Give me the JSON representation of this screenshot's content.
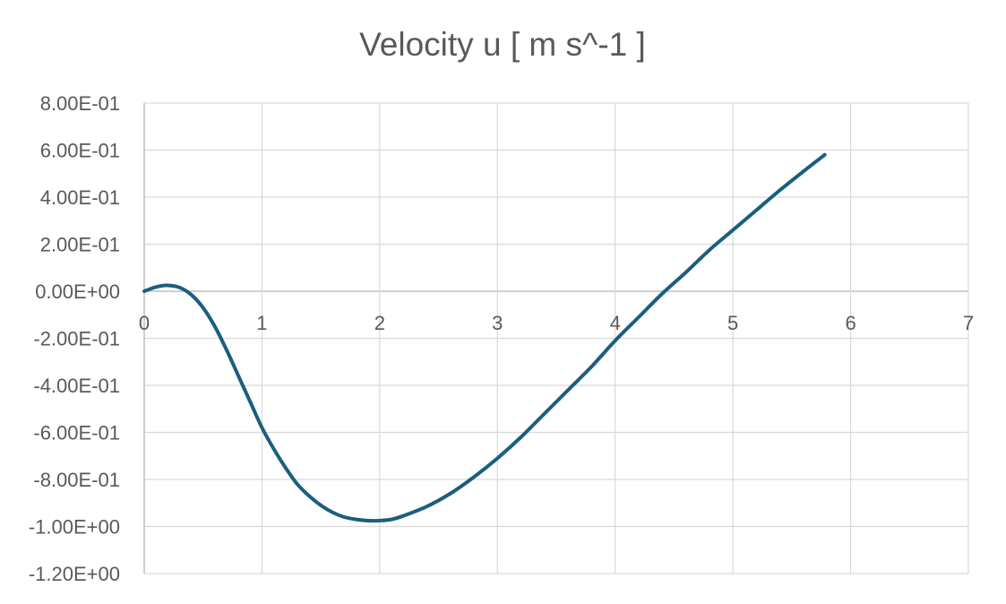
{
  "chart_data": {
    "type": "line",
    "title": "Velocity u [ m s^-1 ]",
    "xlabel": "",
    "ylabel": "",
    "xlim": [
      0,
      7
    ],
    "ylim": [
      -1.2,
      0.8
    ],
    "x_ticks": [
      "0",
      "1",
      "2",
      "3",
      "4",
      "5",
      "6",
      "7"
    ],
    "y_ticks": [
      "8.00E-01",
      "6.00E-01",
      "4.00E-01",
      "2.00E-01",
      "0.00E+00",
      "-2.00E-01",
      "-4.00E-01",
      "-6.00E-01",
      "-8.00E-01",
      "-1.00E+00",
      "-1.20E+00"
    ],
    "grid": true,
    "legend": "none",
    "series": [
      {
        "color": "#1b5e7e",
        "x": [
          0,
          0.1,
          0.2,
          0.3,
          0.4,
          0.5,
          0.6,
          0.7,
          0.8,
          0.9,
          1.0,
          1.1,
          1.2,
          1.3,
          1.4,
          1.5,
          1.6,
          1.7,
          1.8,
          1.9,
          2.0,
          2.1,
          2.2,
          2.4,
          2.6,
          2.8,
          3.0,
          3.2,
          3.4,
          3.6,
          3.8,
          4.0,
          4.2,
          4.4,
          4.6,
          4.8,
          5.0,
          5.2,
          5.4,
          5.6,
          5.78
        ],
        "y": [
          0.0,
          0.018,
          0.025,
          0.016,
          -0.015,
          -0.07,
          -0.15,
          -0.25,
          -0.36,
          -0.47,
          -0.58,
          -0.67,
          -0.75,
          -0.82,
          -0.87,
          -0.91,
          -0.94,
          -0.96,
          -0.97,
          -0.975,
          -0.975,
          -0.97,
          -0.955,
          -0.915,
          -0.86,
          -0.79,
          -0.71,
          -0.62,
          -0.52,
          -0.42,
          -0.32,
          -0.21,
          -0.11,
          -0.01,
          0.08,
          0.175,
          0.26,
          0.345,
          0.43,
          0.51,
          0.58
        ]
      }
    ]
  }
}
